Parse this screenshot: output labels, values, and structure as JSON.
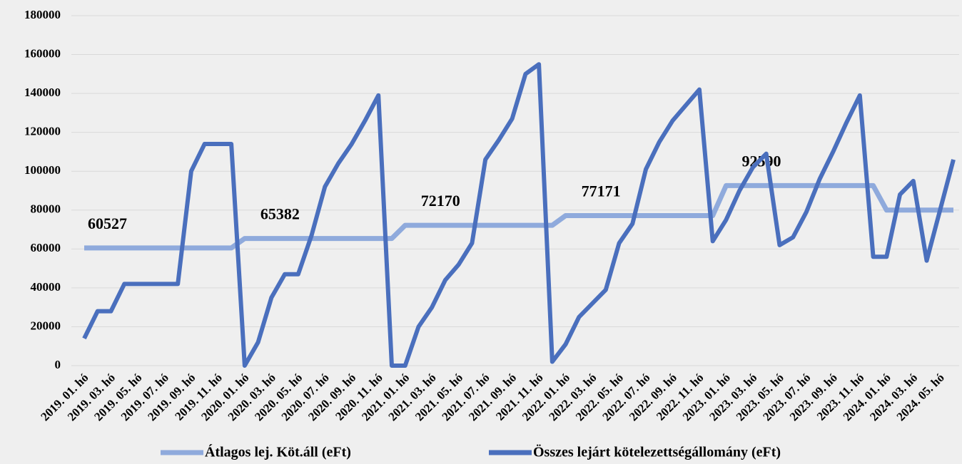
{
  "chart_data": {
    "type": "line",
    "categories": [
      "2019. 01. hó",
      null,
      "2019. 03. hó",
      null,
      "2019. 05. hó",
      null,
      "2019. 07. hó",
      null,
      "2019. 09. hó",
      null,
      "2019. 11. hó",
      null,
      "2020. 01. hó",
      null,
      "2020. 03. hó",
      null,
      "2020. 05. hó",
      null,
      "2020. 07. hó",
      null,
      "2020. 09. hó",
      null,
      "2020. 11. hó",
      null,
      "2021. 01. hó",
      null,
      "2021. 03. hó",
      null,
      "2021. 05. hó",
      null,
      "2021. 07. hó",
      null,
      "2021. 09. hó",
      null,
      "2021. 11. hó",
      null,
      "2022. 01. hó",
      null,
      "2022. 03. hó",
      null,
      "2022. 05. hó",
      null,
      "2022. 07. hó",
      null,
      "2022. 09. hó",
      null,
      "2022. 11. hó",
      null,
      "2023. 01. hó",
      null,
      "2023. 03. hó",
      null,
      "2023. 05. hó",
      null,
      "2023. 07. hó",
      null,
      "2023. 09. hó",
      null,
      "2023. 11. hó",
      null,
      "2024. 01. hó",
      null,
      "2024. 03. hó",
      null,
      "2024. 05. hó",
      null
    ],
    "series": [
      {
        "name": "Átlagos lej. Köt.áll (eFt)",
        "color": "#8faadc",
        "data_labels": true,
        "values": [
          60527,
          60527,
          60527,
          60527,
          60527,
          60527,
          60527,
          60527,
          60527,
          60527,
          60527,
          60527,
          65382,
          65382,
          65382,
          65382,
          65382,
          65382,
          65382,
          65382,
          65382,
          65382,
          65382,
          65382,
          72170,
          72170,
          72170,
          72170,
          72170,
          72170,
          72170,
          72170,
          72170,
          72170,
          72170,
          72170,
          77171,
          77171,
          77171,
          77171,
          77171,
          77171,
          77171,
          77171,
          77171,
          77171,
          77171,
          77171,
          92590,
          92590,
          92590,
          92590,
          92590,
          92590,
          92590,
          92590,
          92590,
          92590,
          92590,
          92590,
          80000,
          80000,
          80000,
          80000,
          80000,
          80000
        ]
      },
      {
        "name": "Összes lejárt kötelezettségállomány (eFt)",
        "color": "#4a6fbd",
        "data_labels": false,
        "values": [
          14000,
          28000,
          28000,
          42000,
          42000,
          42000,
          42000,
          42000,
          100000,
          114000,
          114000,
          114000,
          0,
          12000,
          35000,
          47000,
          47000,
          67000,
          92000,
          104000,
          114000,
          126000,
          139000,
          0,
          0,
          20000,
          30000,
          44000,
          52000,
          63000,
          106000,
          116000,
          127000,
          150000,
          155000,
          2000,
          11000,
          25000,
          32000,
          39000,
          63000,
          73000,
          101000,
          115000,
          126000,
          134000,
          142000,
          64000,
          75000,
          90000,
          102000,
          109000,
          62000,
          66000,
          79000,
          96000,
          110000,
          125000,
          139000,
          56000,
          56000,
          88000,
          95000,
          54000,
          80000,
          106000
        ]
      }
    ],
    "ylim": [
      0,
      180000
    ],
    "yticks": [
      0,
      20000,
      40000,
      60000,
      80000,
      100000,
      120000,
      140000,
      160000,
      180000
    ],
    "grid": true,
    "legend": "bottom"
  }
}
